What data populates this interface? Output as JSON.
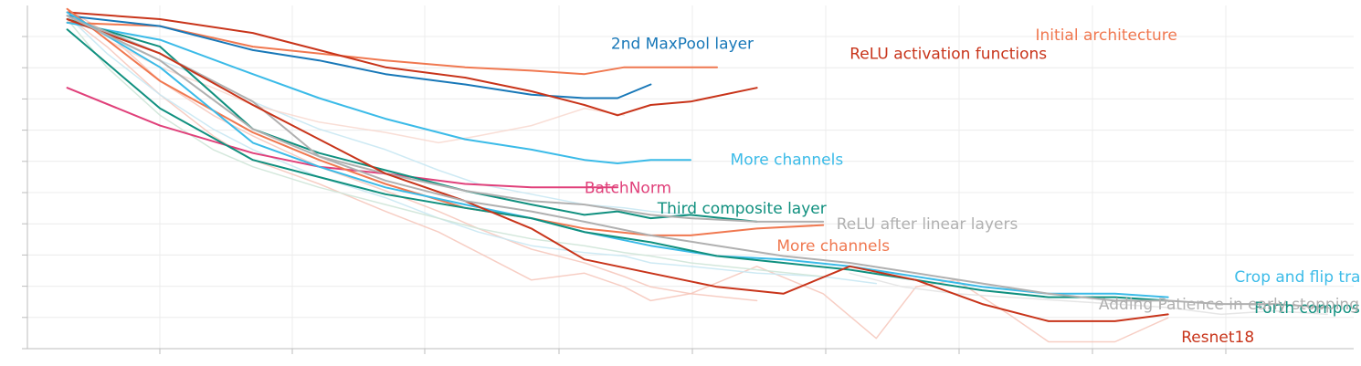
{
  "chart_data": {
    "type": "line",
    "title": "",
    "xlabel": "",
    "ylabel": "",
    "xlim": [
      0,
      1
    ],
    "ylim": [
      0,
      1
    ],
    "grid": true,
    "legend": "none (labels placed at line ends)",
    "series": [
      {
        "name": "Initial architecture",
        "color": "#f07850",
        "width": 2,
        "opacity": 1,
        "label_x": 0.76,
        "label_y": 0.915,
        "x": [
          0.03,
          0.1,
          0.17,
          0.22,
          0.27,
          0.33,
          0.38,
          0.42,
          0.45,
          0.52
        ],
        "y": [
          0.95,
          0.94,
          0.88,
          0.86,
          0.84,
          0.82,
          0.81,
          0.8,
          0.82,
          0.82
        ]
      },
      {
        "name": "2nd MaxPool layer",
        "color": "#1878b8",
        "width": 2,
        "opacity": 1,
        "label_x": 0.44,
        "label_y": 0.89,
        "x": [
          0.03,
          0.1,
          0.17,
          0.22,
          0.27,
          0.33,
          0.38,
          0.42,
          0.445,
          0.47
        ],
        "y": [
          0.97,
          0.94,
          0.87,
          0.84,
          0.8,
          0.77,
          0.74,
          0.73,
          0.73,
          0.77
        ]
      },
      {
        "name": "ReLU activation functions",
        "color": "#c8341a",
        "width": 2,
        "opacity": 1,
        "label_x": 0.62,
        "label_y": 0.86,
        "x": [
          0.03,
          0.1,
          0.17,
          0.22,
          0.27,
          0.33,
          0.38,
          0.42,
          0.445,
          0.47,
          0.5,
          0.55
        ],
        "y": [
          0.98,
          0.96,
          0.92,
          0.87,
          0.82,
          0.79,
          0.75,
          0.71,
          0.68,
          0.71,
          0.72,
          0.76
        ]
      },
      {
        "name": "More channels",
        "color": "#3bbbe8",
        "width": 2,
        "opacity": 1,
        "label_x": 0.53,
        "label_y": 0.552,
        "x": [
          0.03,
          0.1,
          0.17,
          0.22,
          0.27,
          0.33,
          0.38,
          0.42,
          0.445,
          0.47,
          0.5
        ],
        "y": [
          0.95,
          0.9,
          0.8,
          0.73,
          0.67,
          0.61,
          0.58,
          0.55,
          0.54,
          0.55,
          0.55
        ]
      },
      {
        "name": "BatchNorm",
        "color": "#e0407a",
        "width": 2,
        "opacity": 1,
        "label_x": 0.42,
        "label_y": 0.47,
        "x": [
          0.03,
          0.1,
          0.17,
          0.22,
          0.27,
          0.33,
          0.38,
          0.445
        ],
        "y": [
          0.76,
          0.65,
          0.57,
          0.53,
          0.51,
          0.48,
          0.47,
          0.47
        ]
      },
      {
        "name": "Third composite layer",
        "color": "#10907f",
        "width": 2,
        "opacity": 1,
        "label_x": 0.475,
        "label_y": 0.41,
        "x": [
          0.03,
          0.1,
          0.17,
          0.22,
          0.27,
          0.33,
          0.38,
          0.42,
          0.445,
          0.47,
          0.5,
          0.55
        ],
        "y": [
          0.96,
          0.88,
          0.64,
          0.57,
          0.52,
          0.46,
          0.42,
          0.39,
          0.4,
          0.38,
          0.39,
          0.37
        ]
      },
      {
        "name": "ReLU after linear layers",
        "color": "#b0b0b0",
        "width": 2,
        "opacity": 1,
        "label_x": 0.61,
        "label_y": 0.365,
        "x": [
          0.03,
          0.1,
          0.17,
          0.22,
          0.27,
          0.33,
          0.38,
          0.42,
          0.47,
          0.5,
          0.55,
          0.6
        ],
        "y": [
          0.97,
          0.86,
          0.72,
          0.56,
          0.51,
          0.46,
          0.43,
          0.42,
          0.39,
          0.38,
          0.37,
          0.37
        ]
      },
      {
        "name": "More channels",
        "color": "#f07850",
        "width": 2,
        "opacity": 1,
        "label_x": 0.565,
        "label_y": 0.3,
        "x": [
          0.03,
          0.1,
          0.17,
          0.22,
          0.27,
          0.33,
          0.38,
          0.42,
          0.47,
          0.5,
          0.55,
          0.6
        ],
        "y": [
          0.99,
          0.78,
          0.63,
          0.55,
          0.48,
          0.41,
          0.38,
          0.35,
          0.33,
          0.33,
          0.35,
          0.36
        ]
      },
      {
        "name": "Crop and flip transformations",
        "color": "#3bbbe8",
        "width": 2,
        "opacity": 1,
        "label_x": 0.91,
        "label_y": 0.21,
        "x": [
          0.03,
          0.1,
          0.17,
          0.22,
          0.27,
          0.33,
          0.38,
          0.42,
          0.47,
          0.52,
          0.57,
          0.62,
          0.67,
          0.72,
          0.77,
          0.82,
          0.86
        ],
        "y": [
          0.98,
          0.82,
          0.6,
          0.53,
          0.47,
          0.42,
          0.38,
          0.34,
          0.3,
          0.27,
          0.26,
          0.24,
          0.21,
          0.18,
          0.16,
          0.16,
          0.15
        ]
      },
      {
        "name": "Forth composite layer",
        "color": "#10907f",
        "width": 2,
        "opacity": 1,
        "label_x": 0.925,
        "label_y": 0.12,
        "x": [
          0.03,
          0.1,
          0.17,
          0.22,
          0.27,
          0.33,
          0.38,
          0.42,
          0.47,
          0.52,
          0.57,
          0.62,
          0.67,
          0.72,
          0.77,
          0.82,
          0.86
        ],
        "y": [
          0.93,
          0.7,
          0.55,
          0.5,
          0.45,
          0.41,
          0.38,
          0.34,
          0.31,
          0.27,
          0.25,
          0.23,
          0.2,
          0.17,
          0.15,
          0.15,
          0.14
        ]
      },
      {
        "name": "Resnet18",
        "color": "#c8341a",
        "width": 2,
        "opacity": 1,
        "label_x": 0.87,
        "label_y": 0.035,
        "x": [
          0.03,
          0.1,
          0.17,
          0.22,
          0.27,
          0.33,
          0.38,
          0.42,
          0.47,
          0.52,
          0.57,
          0.62,
          0.67,
          0.72,
          0.77,
          0.82,
          0.86
        ],
        "y": [
          0.96,
          0.86,
          0.71,
          0.61,
          0.51,
          0.43,
          0.35,
          0.26,
          0.22,
          0.18,
          0.16,
          0.24,
          0.2,
          0.13,
          0.08,
          0.08,
          0.1
        ]
      },
      {
        "name": "Adding Patience in early stopping",
        "color": "#b0b0b0",
        "width": 2,
        "opacity": 1,
        "label_x": 1.0,
        "label_y": 0.13,
        "x": [
          0.03,
          0.1,
          0.17,
          0.22,
          0.27,
          0.33,
          0.38,
          0.42,
          0.47,
          0.52,
          0.57,
          0.62,
          0.67,
          0.72,
          0.77,
          0.82,
          0.86,
          0.9,
          0.94,
          0.98
        ],
        "y": [
          0.97,
          0.84,
          0.64,
          0.56,
          0.49,
          0.43,
          0.4,
          0.37,
          0.33,
          0.3,
          0.27,
          0.25,
          0.22,
          0.19,
          0.16,
          0.14,
          0.14,
          0.13,
          0.13,
          0.12
        ]
      },
      {
        "name": "",
        "color": "#f5c2b5",
        "width": 1.5,
        "opacity": 0.8,
        "label_x": 0,
        "label_y": 0,
        "x": [
          0.03,
          0.06,
          0.1,
          0.14,
          0.17,
          0.22,
          0.27,
          0.31,
          0.34,
          0.38,
          0.42,
          0.45,
          0.47,
          0.5,
          0.55
        ],
        "y": [
          0.99,
          0.92,
          0.78,
          0.68,
          0.62,
          0.53,
          0.46,
          0.4,
          0.35,
          0.29,
          0.25,
          0.21,
          0.18,
          0.16,
          0.14
        ]
      },
      {
        "name": "",
        "color": "#f5c2b5",
        "width": 1.5,
        "opacity": 0.8,
        "label_x": 0,
        "label_y": 0,
        "x": [
          0.03,
          0.06,
          0.1,
          0.14,
          0.17,
          0.22,
          0.27,
          0.31,
          0.34,
          0.38,
          0.42,
          0.45,
          0.47,
          0.5,
          0.55,
          0.6,
          0.64,
          0.67,
          0.7,
          0.74,
          0.77,
          0.82,
          0.86
        ],
        "y": [
          0.97,
          0.88,
          0.74,
          0.62,
          0.55,
          0.48,
          0.4,
          0.34,
          0.28,
          0.2,
          0.22,
          0.18,
          0.14,
          0.16,
          0.24,
          0.16,
          0.03,
          0.18,
          0.2,
          0.1,
          0.02,
          0.02,
          0.09
        ]
      },
      {
        "name": "",
        "color": "#c9e8f3",
        "width": 1.5,
        "opacity": 0.9,
        "label_x": 0,
        "label_y": 0,
        "x": [
          0.03,
          0.06,
          0.1,
          0.14,
          0.17,
          0.22,
          0.27,
          0.31,
          0.34,
          0.38,
          0.42,
          0.45,
          0.47,
          0.5,
          0.55,
          0.6,
          0.64
        ],
        "y": [
          0.97,
          0.86,
          0.74,
          0.64,
          0.58,
          0.5,
          0.44,
          0.38,
          0.34,
          0.3,
          0.28,
          0.27,
          0.25,
          0.24,
          0.22,
          0.21,
          0.19
        ]
      },
      {
        "name": "",
        "color": "#c9e8f3",
        "width": 1.5,
        "opacity": 0.9,
        "label_x": 0,
        "label_y": 0,
        "x": [
          0.03,
          0.06,
          0.1,
          0.14,
          0.17,
          0.22,
          0.27,
          0.31,
          0.34,
          0.38,
          0.42,
          0.45,
          0.47,
          0.5
        ],
        "y": [
          0.98,
          0.91,
          0.84,
          0.78,
          0.72,
          0.64,
          0.58,
          0.52,
          0.48,
          0.45,
          0.42,
          0.41,
          0.4,
          0.39
        ]
      },
      {
        "name": "",
        "color": "#cfe6d8",
        "width": 1.5,
        "opacity": 0.9,
        "label_x": 0,
        "label_y": 0,
        "x": [
          0.03,
          0.06,
          0.1,
          0.14,
          0.17,
          0.22,
          0.27,
          0.31,
          0.34,
          0.38,
          0.42,
          0.45,
          0.47,
          0.5,
          0.55,
          0.6
        ],
        "y": [
          0.96,
          0.82,
          0.68,
          0.58,
          0.53,
          0.47,
          0.42,
          0.38,
          0.35,
          0.32,
          0.3,
          0.28,
          0.27,
          0.25,
          0.23,
          0.21
        ]
      },
      {
        "name": "",
        "color": "#e3e3e3",
        "width": 1.5,
        "opacity": 0.9,
        "label_x": 0,
        "label_y": 0,
        "x": [
          0.62,
          0.66,
          0.7,
          0.74,
          0.78,
          0.82,
          0.86,
          0.9,
          0.94,
          0.98
        ],
        "y": [
          0.22,
          0.18,
          0.16,
          0.15,
          0.14,
          0.13,
          0.12,
          0.1,
          0.11,
          0.1
        ]
      },
      {
        "name": "",
        "color": "#f8d6cc",
        "width": 1.5,
        "opacity": 0.8,
        "label_x": 0,
        "label_y": 0,
        "x": [
          0.03,
          0.06,
          0.1,
          0.14,
          0.17,
          0.22,
          0.27,
          0.31,
          0.34,
          0.38,
          0.42,
          0.45
        ],
        "y": [
          0.99,
          0.9,
          0.82,
          0.76,
          0.71,
          0.66,
          0.63,
          0.6,
          0.62,
          0.65,
          0.7,
          0.68
        ]
      }
    ]
  }
}
